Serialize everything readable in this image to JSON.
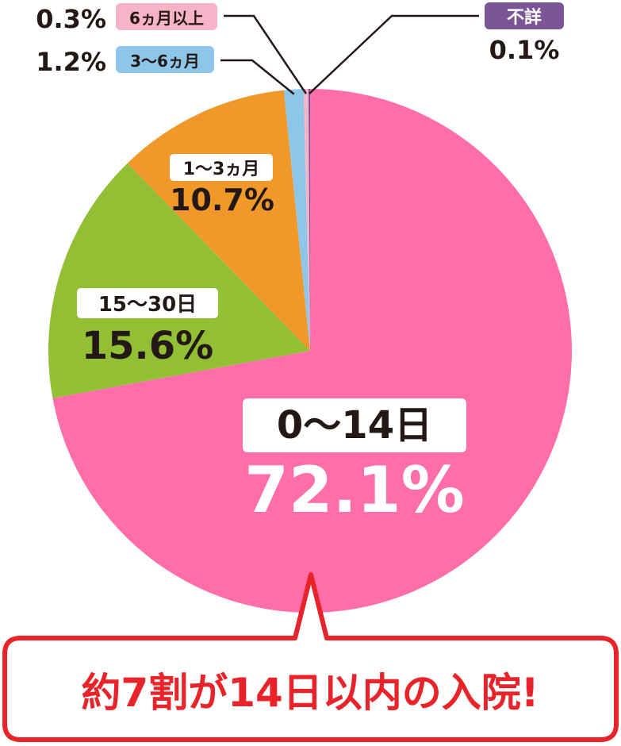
{
  "chart_data": {
    "type": "pie",
    "title": "",
    "callout": "約7割が14日以内の入院!",
    "start": "top, clockwise",
    "slices": [
      {
        "label": "0〜14日",
        "value": 72.1,
        "value_label": "72.1%",
        "color": "#ff6ea8"
      },
      {
        "label": "15〜30日",
        "value": 15.6,
        "value_label": "15.6%",
        "color": "#93bf34"
      },
      {
        "label": "1〜3ヵ月",
        "value": 10.7,
        "value_label": "10.7%",
        "color": "#f0982a"
      },
      {
        "label": "3〜6ヵ月",
        "value": 1.2,
        "value_label": "1.2%",
        "color": "#8ec6ea"
      },
      {
        "label": "6ヵ月以上",
        "value": 0.3,
        "value_label": "0.3%",
        "color": "#f7b4c8"
      },
      {
        "label": "不詳",
        "value": 0.1,
        "value_label": "0.1%",
        "color": "#7b5597"
      }
    ],
    "colors": {
      "callout_border": "#e8232a",
      "callout_text": "#e8232a",
      "leader_line": "#231815",
      "text_dark": "#231815",
      "text_white": "#ffffff"
    }
  }
}
